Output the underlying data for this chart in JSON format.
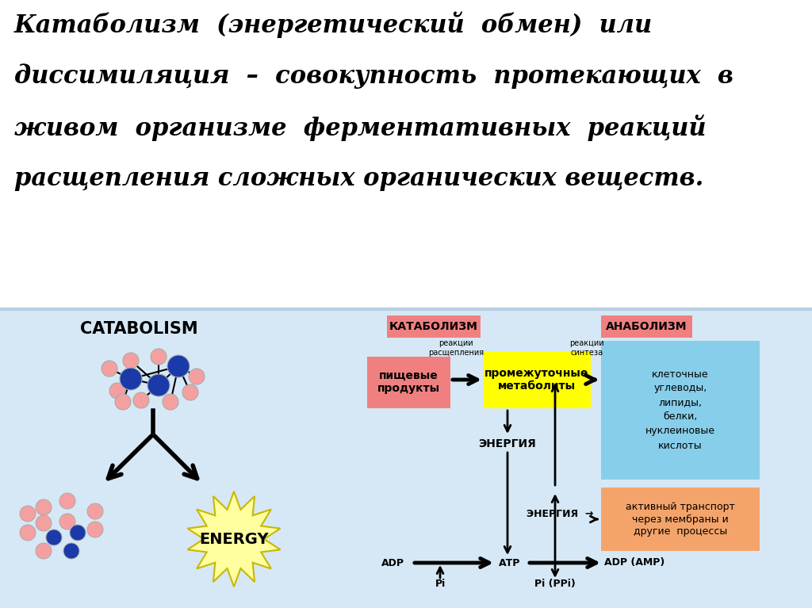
{
  "bg_color": "#ffffff",
  "bottom_bg": "#d6e8f5",
  "divider_color": "#b8cfe0",
  "title_line1_bold": "Катаболизм  (энергетический  обмен)  или",
  "title_line2": "диссимиляция",
  "title_line2_rest": "  –  совокупность  протекающих  в",
  "title_line3": "живом  организме  ферментативных  реакций",
  "title_line4": "расщепления сложных органических веществ.",
  "catabolism_label": "CATABOLISM",
  "energy_label": "ENERGY",
  "katabolism_box": "КАТАБОЛИЗМ",
  "anabolism_box": "АНАБОЛИЗМ",
  "pishevye_label": "пищевые\nпродукты",
  "promezhutochnye_label": "промежуточные\nметаболиты",
  "kletochnye_label": "клеточные\nуглеводы,\nлипиды,\nбелки,\nнуклеиновые\nкислоты",
  "aktivny_label": "активный транспорт\nчерез мембраны и\nдругие  процессы",
  "energiya1": "ЭНЕРГИЯ",
  "energiya2": "ЭНЕРГИЯ",
  "adp": "ADP",
  "atp": "АТР",
  "adp_amp": "ADP (AMP)",
  "pi": "Pi",
  "pi_ppi": "Pi (PPi)",
  "reakcii_rasshepleniya": "реакции\nрасщепления",
  "reakcii_sinteza": "реакции\nсинтеза",
  "katabolism_color": "#f08080",
  "anabolism_color": "#f08080",
  "pishevye_color": "#f08080",
  "promezhutochnye_color": "#ffff00",
  "kletochnye_color": "#87ceeb",
  "aktivny_color": "#f4a46a",
  "blue_node_color": "#1a3aaa",
  "pink_node_color": "#f4a0a0"
}
